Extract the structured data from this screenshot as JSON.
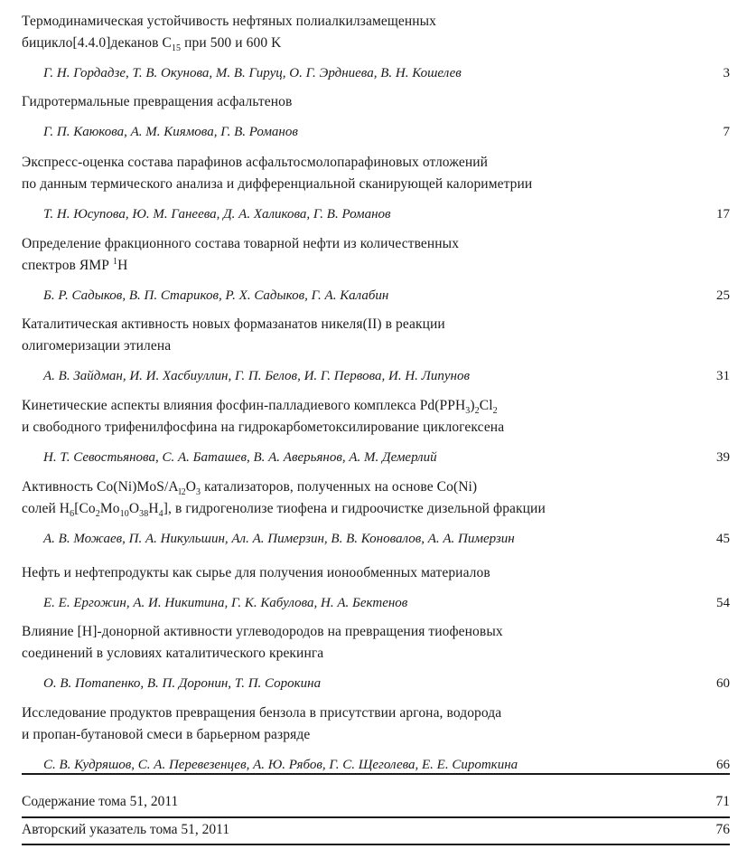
{
  "entries": [
    {
      "title_lines": [
        "Термодинамическая устойчивость нефтяных полиалкилзамещенных",
        "бицикло[4.4.0]деканов C<sub>15</sub> при 500 и 600 K"
      ],
      "authors": "Г. Н. Гордадзе, Т. В. Окунова, М. В. Гируц, О. Г. Эрдниева, В. Н. Кошелев",
      "page": "3"
    },
    {
      "title_lines": [
        "Гидротермальные превращения асфальтенов"
      ],
      "authors": "Г. П. Каюкова, А. М. Киямова, Г. В. Романов",
      "page": "7"
    },
    {
      "title_lines": [
        "Экспресс-оценка состава парафинов асфальтосмолопарафиновых отложений",
        "по данным термического анализа и дифференциальной сканирующей калориметрии"
      ],
      "authors": "Т. Н. Юсупова, Ю. М. Ганеева, Д. А. Халикова, Г. В. Романов",
      "page": "17"
    },
    {
      "title_lines": [
        "Определение фракционного состава товарной нефти из количественных",
        "спектров ЯМР <sup>1</sup>H"
      ],
      "authors": "Б. Р. Садыков, В. П. Стариков, Р. Х. Садыков, Г. А. Калабин",
      "page": "25"
    },
    {
      "title_lines": [
        "Каталитическая активность новых формазанатов никеля(II) в реакции",
        "олигомеризации этилена"
      ],
      "authors": "А. В. Зайдман, И. И. Хасбиуллин, Г. П. Белов, И. Г. Первова, И. Н. Липунов",
      "page": "31"
    },
    {
      "title_lines": [
        "Кинетические аспекты влияния фосфин-палладиевого комплекса Pd(PPH<sub>3</sub>)<sub>2</sub>Cl<sub>2</sub>",
        "и свободного трифенилфосфина на гидрокарбометоксилирование циклогексена"
      ],
      "authors": "Н. Т. Севостьянова, С. А. Баташев, В. А. Аверьянов, А. М. Демерлий",
      "page": "39"
    },
    {
      "title_lines": [
        "Активность Co(Ni)MoS/A<sub>l2</sub>O<sub>3</sub> катализаторов, полученных на основе Co(Ni)",
        "солей H<sub>6</sub>[Co<sub>2</sub>Mo<sub>10</sub>O<sub>38</sub>H<sub>4</sub>], в гидрогенолизе тиофена и гидроочистке дизельной фракции"
      ],
      "authors": "А. В. Можаев, П. А. Никульшин, Ал. А. Пимерзин, В. В. Коновалов, А. А. Пимерзин",
      "page": "45"
    },
    {
      "title_lines": [
        "Нефть и нефтепродукты как сырье для получения ионообменных материалов"
      ],
      "authors": "Е. Е. Ергожин, А. И. Никитина, Г. К. Кабулова, Н. А. Бектенов",
      "page": "54"
    },
    {
      "title_lines": [
        "Влияние [H]-донорной активности углеводородов на превращения тиофеновых",
        "соединений в условиях каталитического крекинга"
      ],
      "authors": "О. В. Потапенко, В. П. Доронин, Т. П. Сорокина",
      "page": "60"
    },
    {
      "title_lines": [
        "Исследование продуктов превращения бензола в присутствии аргона, водорода",
        "и пропан-бутановой смеси в барьерном разряде"
      ],
      "authors": "С. В. Кудряшов, С. А. Перевезенцев, А. Ю. Рябов, Г. С. Щеголева, Е. Е. Сироткина",
      "page": "66"
    }
  ],
  "extras": [
    {
      "label": "Содержание тома 51, 2011",
      "page": "71"
    },
    {
      "label": "Авторский указатель тома 51, 2011",
      "page": "76"
    }
  ]
}
